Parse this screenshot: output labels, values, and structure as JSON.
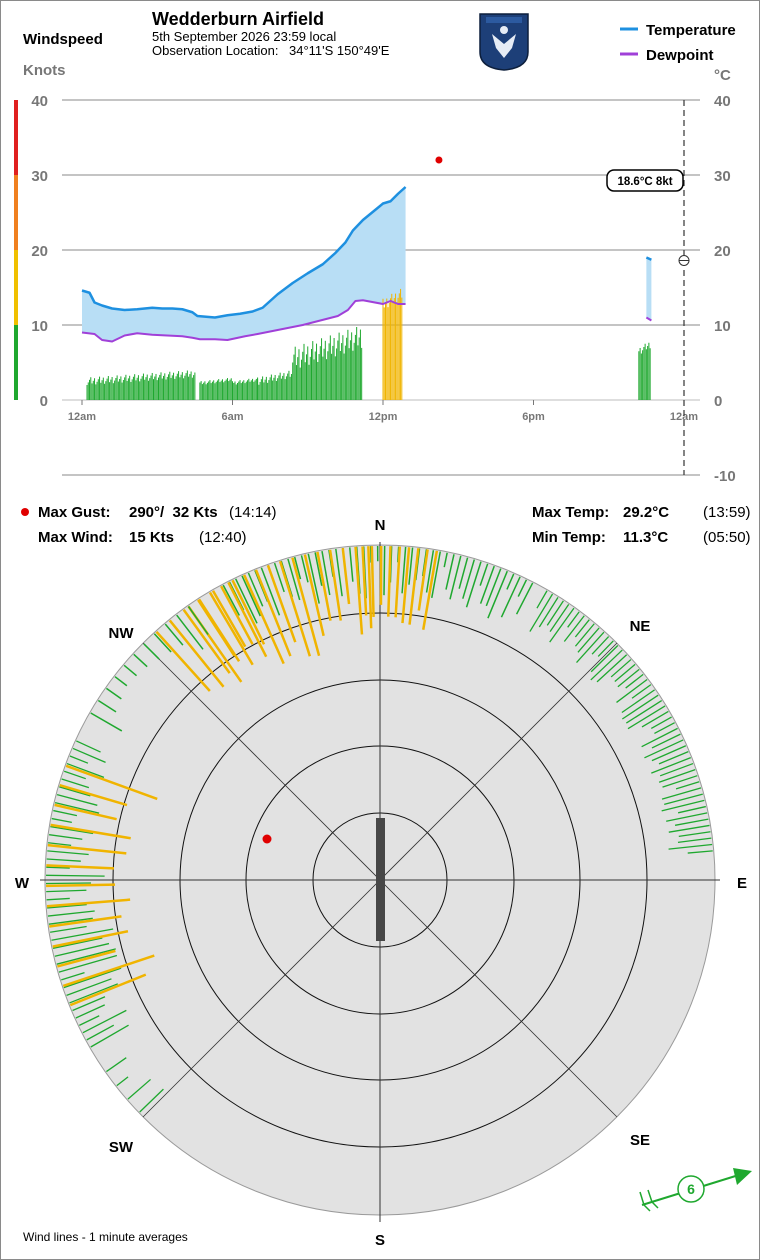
{
  "header": {
    "left_title": "Windspeed",
    "left_units": "Knots",
    "station": "Wedderburn Airfield",
    "datetime": "5th September 2026  23:59 local",
    "location_label": "Observation Location:",
    "location_value": "34°11'S 150°49'E",
    "logo_name": "shield-eagle-logo",
    "right_units": "°C"
  },
  "legend": [
    {
      "label": "Temperature",
      "color": "#1e90e0"
    },
    {
      "label": "Dewpoint",
      "color": "#a040d8"
    }
  ],
  "readout": {
    "text": "18.6°C  8kt"
  },
  "stats": {
    "max_gust_label": "Max Gust:",
    "max_gust_value": "290°/  32 Kts",
    "max_gust_time": "(14:14)",
    "max_wind_label": "Max Wind:",
    "max_wind_value": "15 Kts",
    "max_wind_time": "(12:40)",
    "max_temp_label": "Max Temp:",
    "max_temp_value": "29.2°C",
    "max_temp_time": "(13:59)",
    "min_temp_label": "Min Temp:",
    "min_temp_value": "11.3°C",
    "min_temp_time": "(05:50)"
  },
  "rose": {
    "labels": {
      "N": "N",
      "NE": "NE",
      "E": "E",
      "SE": "SE",
      "S": "S",
      "SW": "SW",
      "W": "W",
      "NW": "NW"
    },
    "current_wind": "6",
    "footer": "Wind lines - 1 minute averages"
  },
  "colors": {
    "temp": "#1e90e0",
    "dew": "#a040d8",
    "fill": "#b8def5",
    "wind_green": "#1fa82f",
    "wind_gold": "#f0b400",
    "gust_red": "#e00000",
    "rose_bg": "#e2e2e2",
    "grid": "#9a9a9a"
  },
  "chart_data": {
    "type": "line",
    "x_ticks": [
      "12am",
      "6am",
      "12pm",
      "6pm",
      "12am"
    ],
    "wind_axis": {
      "label": "Knots",
      "ticks": [
        "0",
        "10",
        "20",
        "30",
        "40"
      ],
      "range": [
        0,
        40
      ]
    },
    "temp_axis": {
      "label": "°C",
      "ticks": [
        "-10",
        "0",
        "10",
        "20",
        "30",
        "40"
      ],
      "range": [
        -10,
        40
      ]
    },
    "temperature_series": [
      {
        "hour": 0.0,
        "value": 14.6
      },
      {
        "hour": 0.3,
        "value": 14.3
      },
      {
        "hour": 0.5,
        "value": 13.0
      },
      {
        "hour": 0.8,
        "value": 12.6
      },
      {
        "hour": 1.2,
        "value": 12.2
      },
      {
        "hour": 1.7,
        "value": 12.0
      },
      {
        "hour": 2.2,
        "value": 12.1
      },
      {
        "hour": 2.8,
        "value": 12.3
      },
      {
        "hour": 3.2,
        "value": 12.2
      },
      {
        "hour": 3.6,
        "value": 12.2
      },
      {
        "hour": 4.0,
        "value": 12.1
      },
      {
        "hour": 4.4,
        "value": 11.7
      },
      {
        "hour": 4.6,
        "value": 11.2
      },
      {
        "hour": 5.3,
        "value": 11.0
      },
      {
        "hour": 5.8,
        "value": 11.3
      },
      {
        "hour": 6.3,
        "value": 11.5
      },
      {
        "hour": 6.8,
        "value": 11.8
      },
      {
        "hour": 7.2,
        "value": 12.3
      },
      {
        "hour": 7.5,
        "value": 13.2
      },
      {
        "hour": 7.8,
        "value": 14.1
      },
      {
        "hour": 8.4,
        "value": 15.6
      },
      {
        "hour": 9.0,
        "value": 16.9
      },
      {
        "hour": 9.6,
        "value": 18.1
      },
      {
        "hour": 10.1,
        "value": 19.6
      },
      {
        "hour": 10.5,
        "value": 21.0
      },
      {
        "hour": 10.8,
        "value": 22.6
      },
      {
        "hour": 11.2,
        "value": 24.0
      },
      {
        "hour": 12.0,
        "value": 26.2
      },
      {
        "hour": 12.3,
        "value": 26.5
      },
      {
        "hour": 12.6,
        "value": 27.5
      },
      {
        "hour": 12.9,
        "value": 28.4
      },
      {
        "hour": 22.5,
        "value": 19.0
      },
      {
        "hour": 22.7,
        "value": 18.7
      }
    ],
    "dewpoint_series": [
      {
        "hour": 0.0,
        "value": 9.0
      },
      {
        "hour": 0.5,
        "value": 8.8
      },
      {
        "hour": 0.8,
        "value": 8.0
      },
      {
        "hour": 1.2,
        "value": 7.8
      },
      {
        "hour": 1.7,
        "value": 8.6
      },
      {
        "hour": 2.2,
        "value": 8.9
      },
      {
        "hour": 2.8,
        "value": 8.7
      },
      {
        "hour": 3.4,
        "value": 8.6
      },
      {
        "hour": 4.0,
        "value": 8.5
      },
      {
        "hour": 4.4,
        "value": 8.3
      },
      {
        "hour": 4.7,
        "value": 8.1
      },
      {
        "hour": 5.3,
        "value": 8.1
      },
      {
        "hour": 5.8,
        "value": 8.0
      },
      {
        "hour": 6.5,
        "value": 8.5
      },
      {
        "hour": 7.0,
        "value": 8.8
      },
      {
        "hour": 7.6,
        "value": 9.2
      },
      {
        "hour": 8.2,
        "value": 9.6
      },
      {
        "hour": 8.8,
        "value": 10.0
      },
      {
        "hour": 9.5,
        "value": 10.6
      },
      {
        "hour": 10.2,
        "value": 11.2
      },
      {
        "hour": 10.6,
        "value": 12.0
      },
      {
        "hour": 10.9,
        "value": 13.2
      },
      {
        "hour": 11.2,
        "value": 13.3
      },
      {
        "hour": 12.0,
        "value": 12.8
      },
      {
        "hour": 12.3,
        "value": 13.2
      },
      {
        "hour": 12.6,
        "value": 12.8
      },
      {
        "hour": 12.9,
        "value": 12.8
      },
      {
        "hour": 22.5,
        "value": 11.0
      },
      {
        "hour": 22.7,
        "value": 10.6
      }
    ],
    "wind_bar_segments": [
      {
        "start": 0.2,
        "end": 4.5,
        "base": 2,
        "peak": 4,
        "color": "green"
      },
      {
        "start": 4.7,
        "end": 6.0,
        "base": 2,
        "peak": 3,
        "color": "green"
      },
      {
        "start": 6.0,
        "end": 7.0,
        "base": 2,
        "peak": 3,
        "color": "green"
      },
      {
        "start": 7.0,
        "end": 8.4,
        "base": 2,
        "peak": 4,
        "color": "green"
      },
      {
        "start": 8.4,
        "end": 11.2,
        "base": 4,
        "peak": 10,
        "color": "green"
      },
      {
        "start": 12.0,
        "end": 12.8,
        "base": 12,
        "peak": 15,
        "color": "gold"
      },
      {
        "start": 22.2,
        "end": 22.7,
        "base": 6,
        "peak": 8,
        "color": "green"
      }
    ],
    "gust_marker": {
      "hour": 14.23,
      "speed": 32
    },
    "current_marker": {
      "temp": 18.6,
      "wind": 8
    }
  }
}
